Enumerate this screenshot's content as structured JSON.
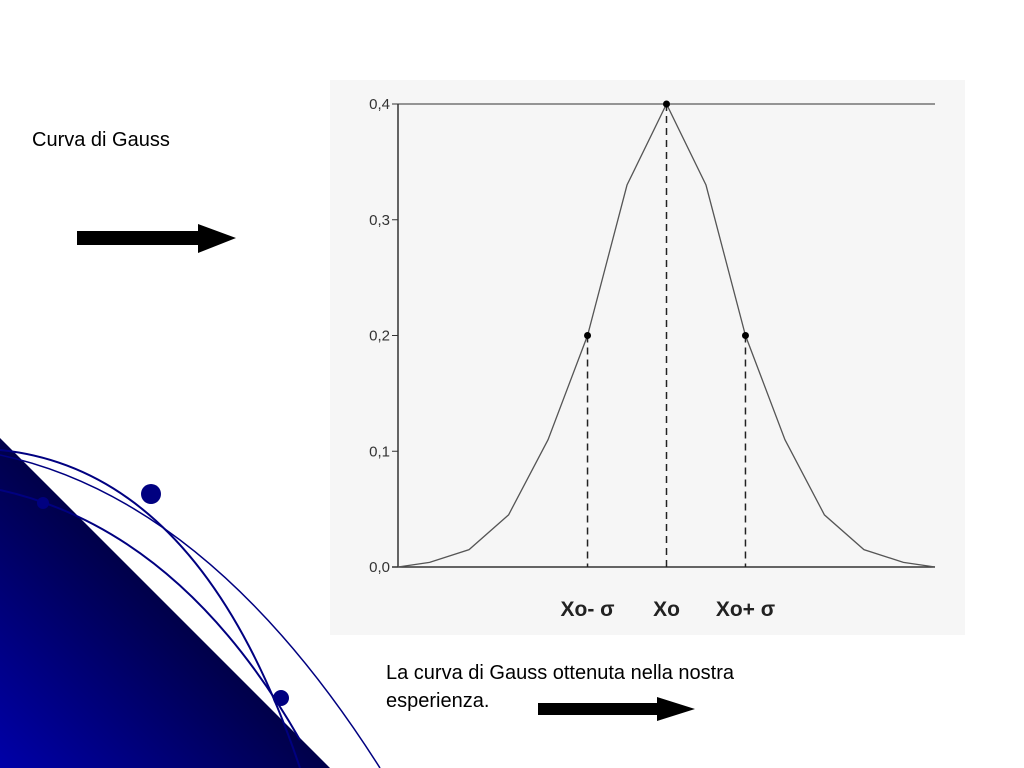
{
  "slide_title": "Curva di Gauss",
  "caption": [
    "La curva di Gauss ottenuta nella nostra",
    "esperienza."
  ],
  "chart_data": {
    "type": "line",
    "x": [
      -3.4,
      -3,
      -2.5,
      -2,
      -1.5,
      -1,
      -0.5,
      0,
      0.5,
      1,
      1.5,
      2,
      2.5,
      3,
      3.4
    ],
    "values": [
      0.0,
      0.004,
      0.015,
      0.045,
      0.11,
      0.2,
      0.33,
      0.4,
      0.33,
      0.2,
      0.11,
      0.045,
      0.015,
      0.004,
      0.0
    ],
    "color": "#555555",
    "points": {
      "x": [
        -1,
        0,
        1
      ],
      "values": [
        0.2,
        0.4,
        0.2
      ]
    },
    "xlim": [
      -3.4,
      3.4
    ],
    "ylim": [
      0,
      0.4
    ],
    "xticks": [
      {
        "value": -1,
        "label": "Xo- σ"
      },
      {
        "value": 0,
        "label": "Xo"
      },
      {
        "value": 1,
        "label": "Xo+ σ"
      }
    ],
    "yticks": [
      {
        "value": 0,
        "label": "0,0"
      },
      {
        "value": 0.1,
        "label": "0,1"
      },
      {
        "value": 0.2,
        "label": "0,2"
      },
      {
        "value": 0.3,
        "label": "0,3"
      },
      {
        "value": 0.4,
        "label": "0,4"
      }
    ]
  }
}
